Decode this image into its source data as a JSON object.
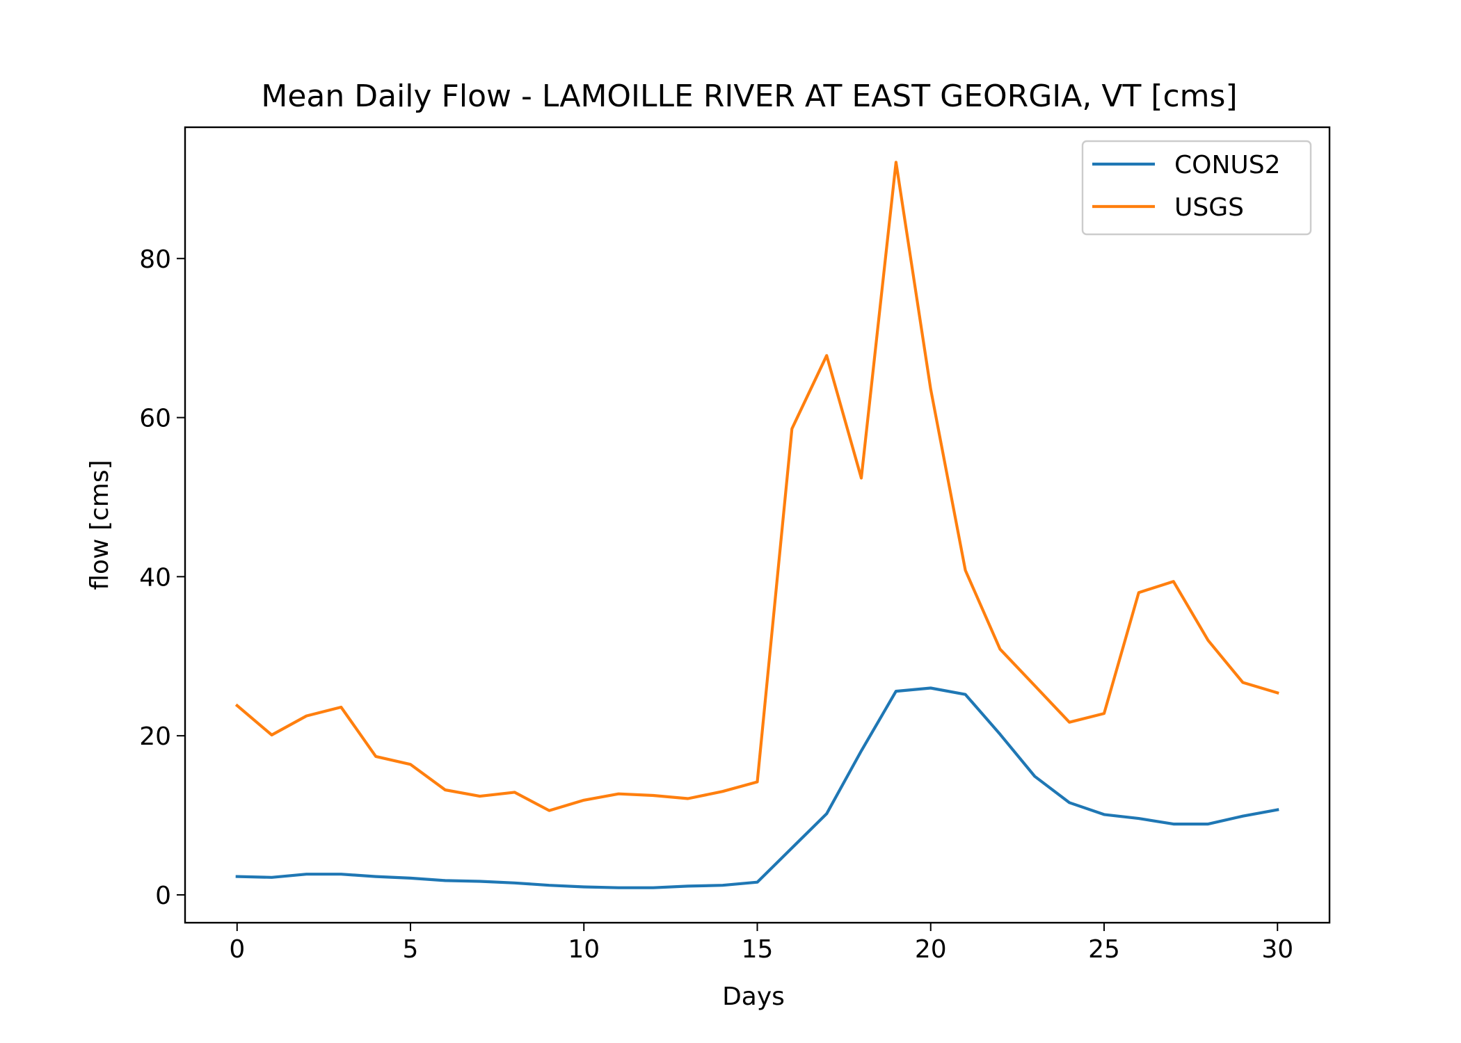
{
  "chart_data": {
    "type": "line",
    "title": "Mean Daily Flow - LAMOILLE RIVER AT EAST GEORGIA, VT [cms]",
    "xlabel": "Days",
    "ylabel": "flow [cms]",
    "xlim": [
      -1.5,
      31.5
    ],
    "ylim": [
      -3.5,
      96.5
    ],
    "xticks": [
      0,
      5,
      10,
      15,
      20,
      25,
      30
    ],
    "yticks": [
      0,
      20,
      40,
      60,
      80
    ],
    "grid": false,
    "legend_position": "upper right",
    "x": [
      0,
      1,
      2,
      3,
      4,
      5,
      6,
      7,
      8,
      9,
      10,
      11,
      12,
      13,
      14,
      15,
      16,
      17,
      18,
      19,
      20,
      21,
      22,
      23,
      24,
      25,
      26,
      27,
      28,
      29,
      30
    ],
    "series": [
      {
        "name": "CONUS2",
        "color": "#1f77b4",
        "values": [
          2.3,
          2.2,
          2.6,
          2.6,
          2.3,
          2.1,
          1.8,
          1.7,
          1.5,
          1.2,
          1.0,
          0.9,
          0.9,
          1.1,
          1.2,
          1.6,
          5.9,
          10.2,
          18.1,
          25.6,
          26.0,
          25.2,
          20.2,
          14.9,
          11.6,
          10.1,
          9.6,
          8.9,
          8.9,
          9.9,
          10.7
        ]
      },
      {
        "name": "USGS",
        "color": "#ff7f0e",
        "values": [
          23.8,
          20.1,
          22.5,
          23.6,
          17.4,
          16.4,
          13.2,
          12.4,
          12.9,
          10.6,
          11.9,
          12.7,
          12.5,
          12.1,
          13.0,
          14.2,
          58.6,
          67.8,
          52.4,
          92.1,
          63.6,
          40.8,
          30.9,
          26.3,
          21.7,
          22.8,
          38.0,
          39.4,
          32.0,
          26.7,
          25.4
        ]
      }
    ]
  }
}
